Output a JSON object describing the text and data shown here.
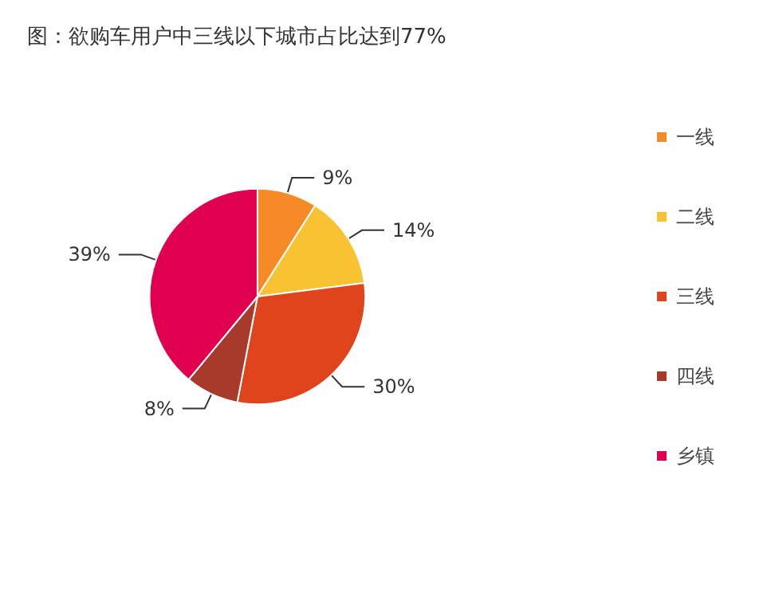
{
  "chart_data": {
    "type": "pie",
    "title": "图：欲购车用户中三线以下城市占比达到77%",
    "categories": [
      "一线",
      "二线",
      "三线",
      "四线",
      "乡镇"
    ],
    "values": [
      9,
      14,
      30,
      8,
      39
    ],
    "value_labels": [
      "9%",
      "14%",
      "30%",
      "8%",
      "39%"
    ],
    "colors": [
      "#f58a26",
      "#f8c232",
      "#e0441c",
      "#a83a2c",
      "#e0004f"
    ],
    "legend": "right"
  }
}
